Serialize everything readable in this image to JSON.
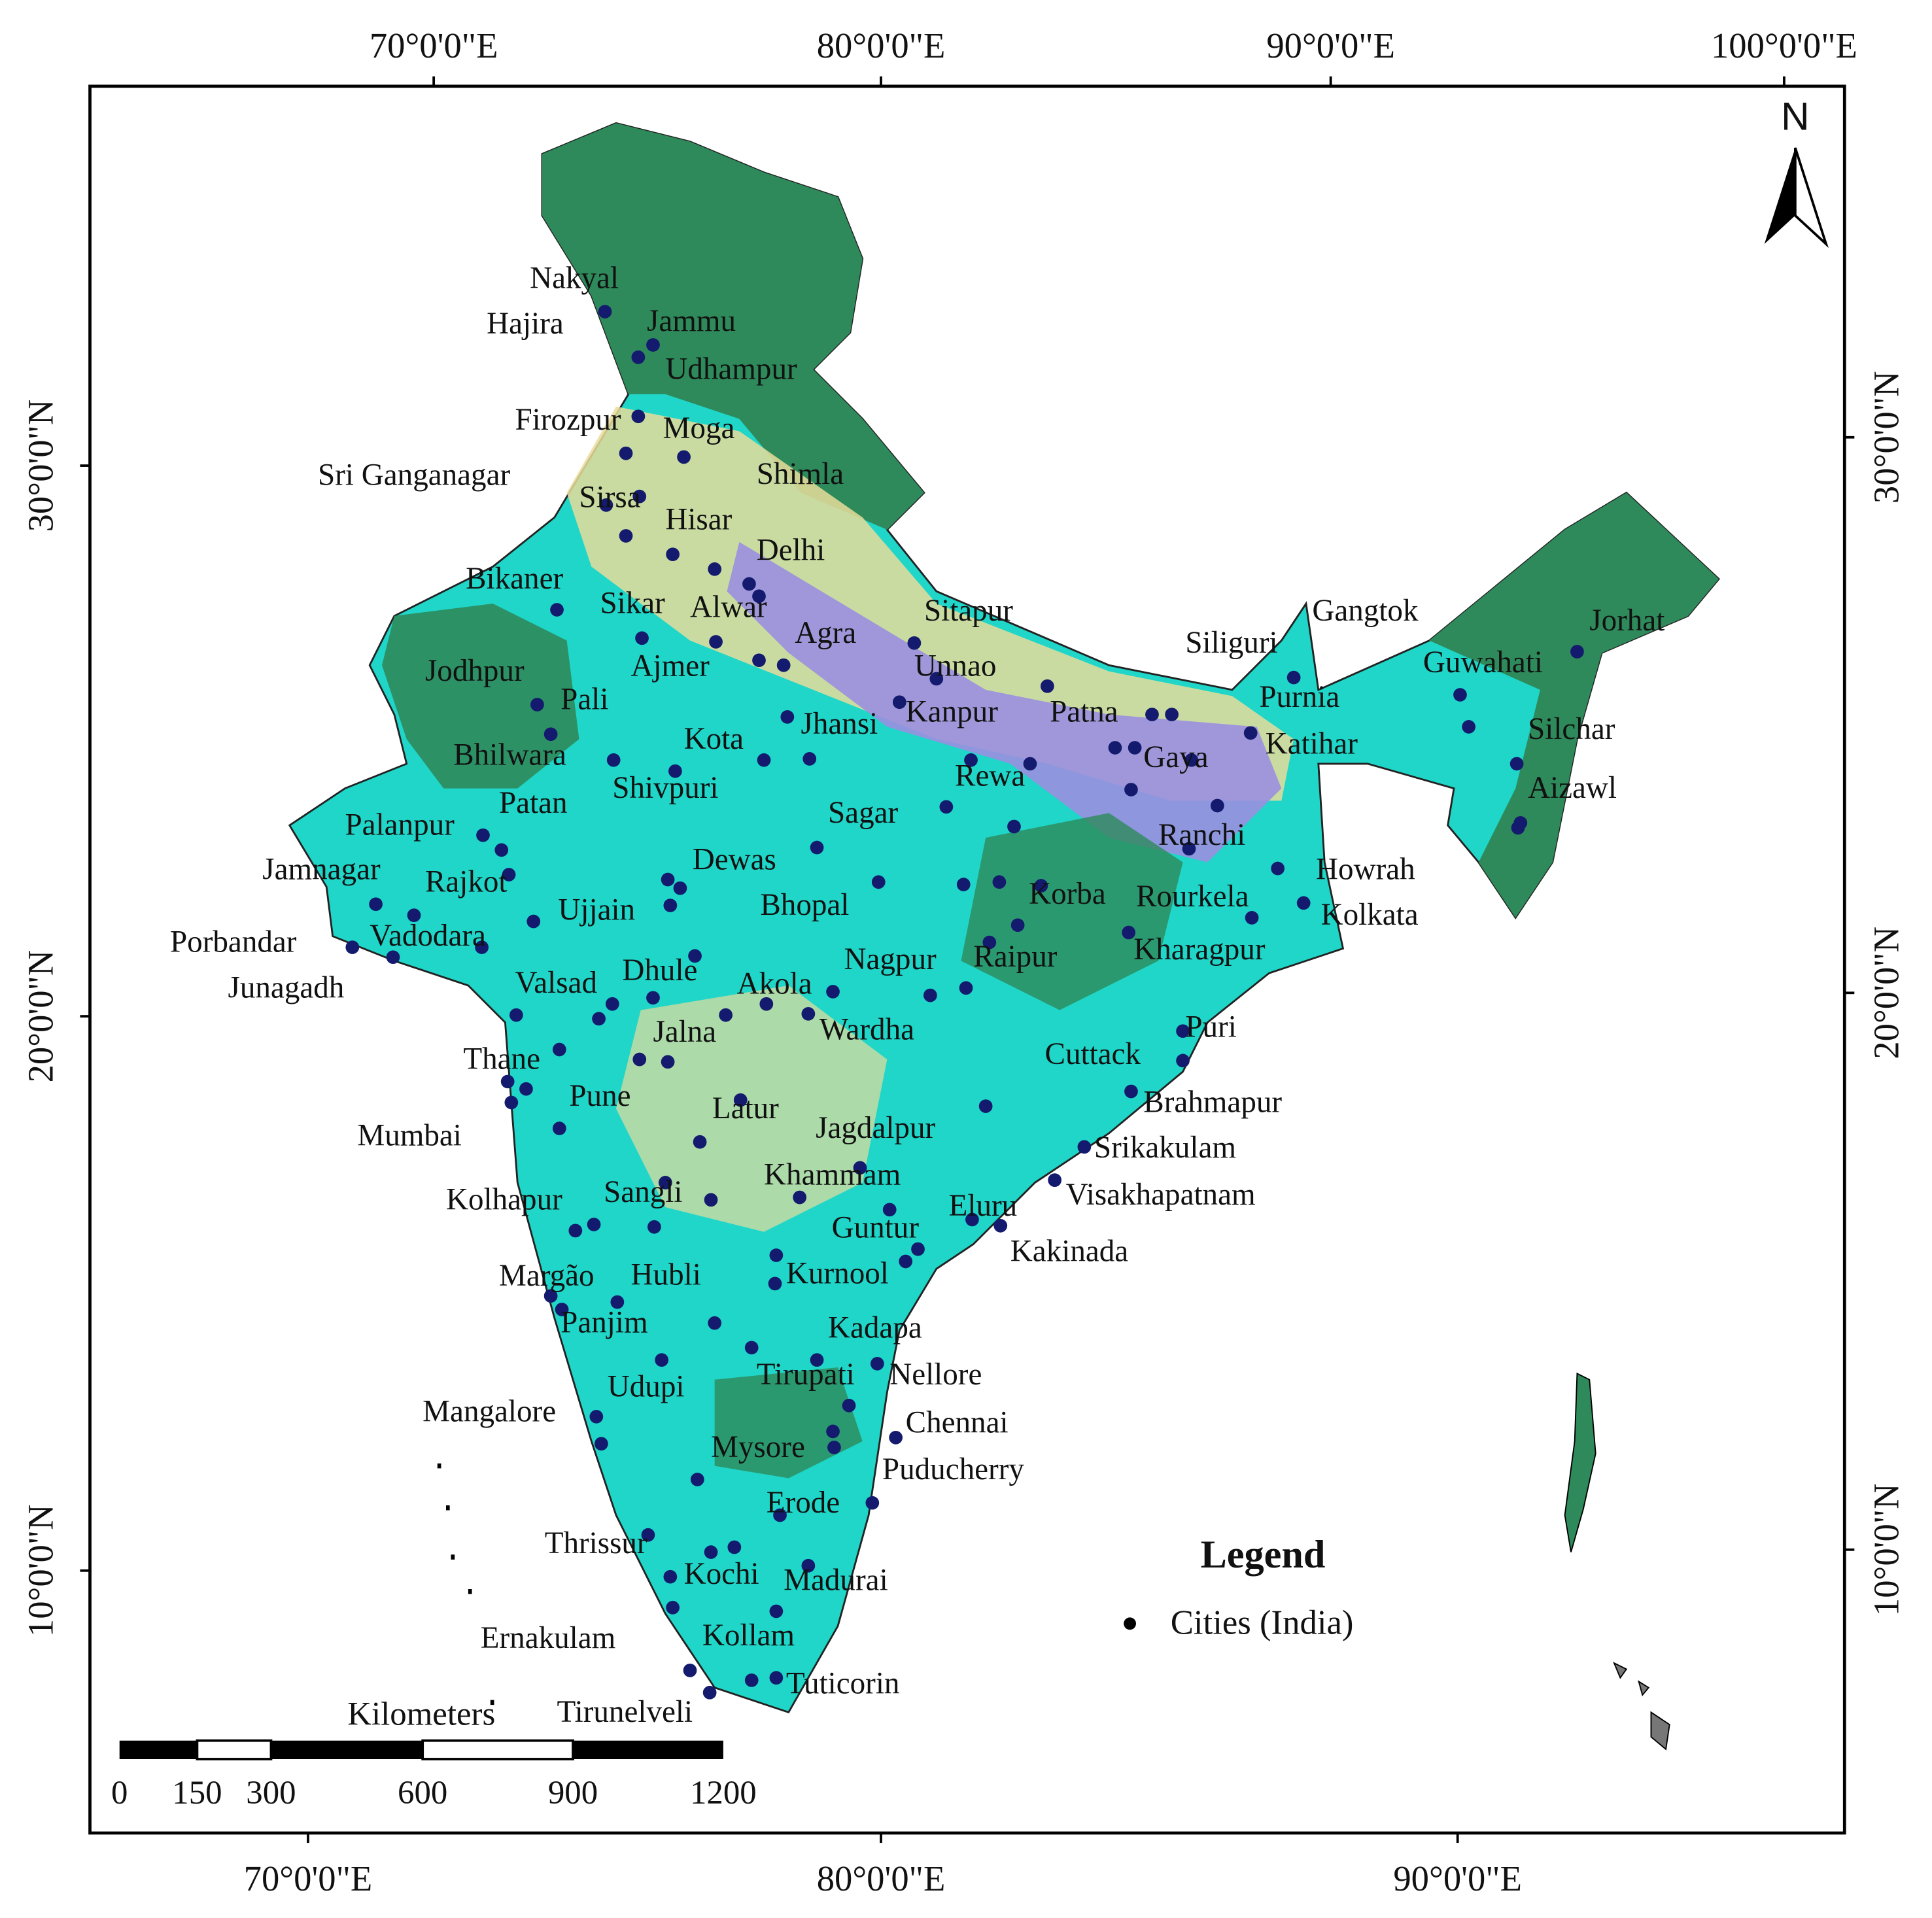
{
  "map": {
    "top_ticks": [
      "70°0'0\"E",
      "80°0'0\"E",
      "90°0'0\"E",
      "100°0'0\"E"
    ],
    "bottom_ticks": [
      "70°0'0\"E",
      "80°0'0\"E",
      "90°0'0\"E"
    ],
    "left_ticks": [
      "30°0'0\"N",
      "20°0'0\"N",
      "10°0'0\"N"
    ],
    "right_ticks": [
      "30°0'0\"N",
      "20°0'0\"N",
      "10°0'0\"N"
    ],
    "north": "N",
    "cities": [
      "Nakyal",
      "Hajira",
      "Jammu",
      "Udhampur",
      "Firozpur",
      "Moga",
      "Sri Ganganagar",
      "Shimla",
      "Sirsa",
      "Hisar",
      "Delhi",
      "Bikaner",
      "Sikar",
      "Alwar",
      "Agra",
      "Sitapur",
      "Siliguri",
      "Gangtok",
      "Jorhat",
      "Jodhpur",
      "Ajmer",
      "Unnao",
      "Guwahati",
      "Pali",
      "Kanpur",
      "Patna",
      "Purnia",
      "Jhansi",
      "Katihar",
      "Silchar",
      "Kota",
      "Bhilwara",
      "Gaya",
      "Rewa",
      "Shivpuri",
      "Aizawl",
      "Patan",
      "Sagar",
      "Palanpur",
      "Ranchi",
      "Dewas",
      "Jamnagar",
      "Howrah",
      "Rajkot",
      "Korba",
      "Rourkela",
      "Ujjain",
      "Bhopal",
      "Kolkata",
      "Porbandar",
      "Vadodara",
      "Nagpur",
      "Raipur",
      "Kharagpur",
      "Junagadh",
      "Valsad",
      "Dhule",
      "Akola",
      "Wardha",
      "Puri",
      "Jalna",
      "Cuttack",
      "Thane",
      "Pune",
      "Brahmapur",
      "Latur",
      "Mumbai",
      "Jagdalpur",
      "Srikakulam",
      "Khammam",
      "Sangli",
      "Visakhapatnam",
      "Kolhapur",
      "Eluru",
      "Guntur",
      "Kakinada",
      "Margão",
      "Hubli",
      "Kurnool",
      "Panjim",
      "Kadapa",
      "Nellore",
      "Tirupati",
      "Udupi",
      "Mangalore",
      "Chennai",
      "Mysore",
      "Puducherry",
      "Erode",
      "Thrissur",
      "Kochi",
      "Madurai",
      "Ernakulam",
      "Kollam",
      "Tuticorin",
      "Tirunelveli"
    ],
    "legend": {
      "title": "Legend",
      "item": "Cities (India)"
    },
    "scale": {
      "unit": "Kilometers",
      "labels": [
        0,
        150,
        300,
        600,
        900,
        1200
      ]
    }
  }
}
